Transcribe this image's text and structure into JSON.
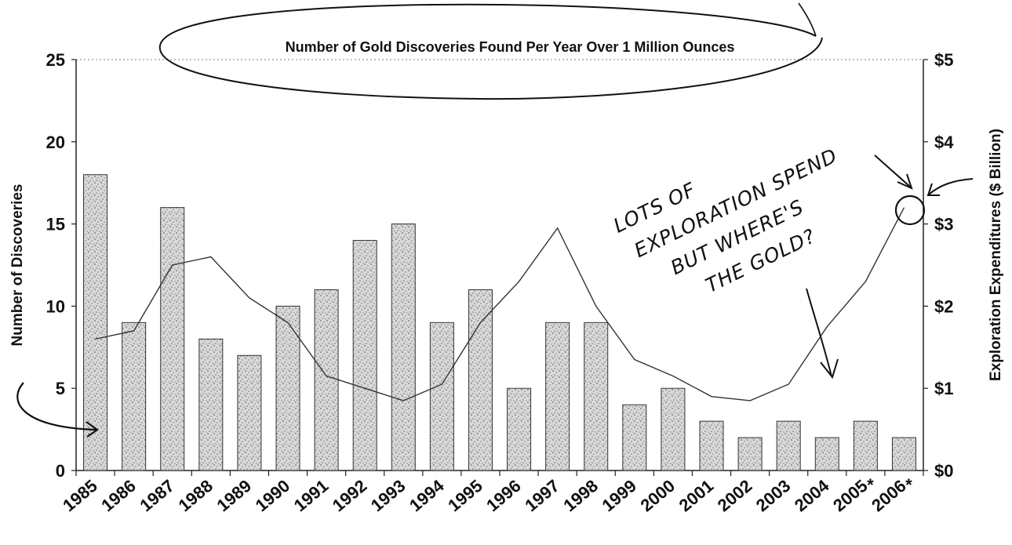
{
  "chart_data": {
    "type": "bar",
    "title": "Number of Gold Discoveries Found Per Year Over 1 Million Ounces",
    "categories": [
      "1985",
      "1986",
      "1987",
      "1988",
      "1989",
      "1990",
      "1991",
      "1992",
      "1993",
      "1994",
      "1995",
      "1996",
      "1997",
      "1998",
      "1999",
      "2000",
      "2001",
      "2002",
      "2003",
      "2004",
      "2005",
      "2006"
    ],
    "footnote_marks": [
      "",
      "",
      "",
      "",
      "",
      "",
      "",
      "",
      "",
      "",
      "",
      "",
      "",
      "",
      "",
      "",
      "",
      "",
      "",
      "",
      "*",
      "*"
    ],
    "series": [
      {
        "type": "bar",
        "axis": "left",
        "values": [
          18,
          9,
          16,
          8,
          7,
          10,
          11,
          14,
          15,
          9,
          11,
          5,
          9,
          9,
          4,
          5,
          3,
          2,
          3,
          2,
          3,
          2
        ]
      },
      {
        "type": "line",
        "axis": "right",
        "values": [
          1.6,
          1.7,
          2.5,
          2.6,
          2.1,
          1.8,
          1.15,
          1.0,
          0.85,
          1.05,
          1.8,
          2.3,
          2.95,
          2.0,
          1.35,
          1.15,
          0.9,
          0.85,
          1.05,
          1.75,
          2.3,
          3.2
        ]
      }
    ],
    "ylabel": "Number of Discoveries",
    "ylim": [
      0,
      25
    ],
    "yticks": [
      "0",
      "5",
      "10",
      "15",
      "20",
      "25"
    ],
    "y2label": "Exploration Expenditures ($ Billion)",
    "y2lim": [
      0,
      5
    ],
    "y2ticks": [
      "$0",
      "$1",
      "$2",
      "$3",
      "$4",
      "$5"
    ],
    "grid": false
  },
  "annotations": {
    "handwritten_lines": [
      "LOTS OF",
      "EXPLORATION SPEND",
      "BUT WHERE'S",
      "THE GOLD?"
    ]
  }
}
